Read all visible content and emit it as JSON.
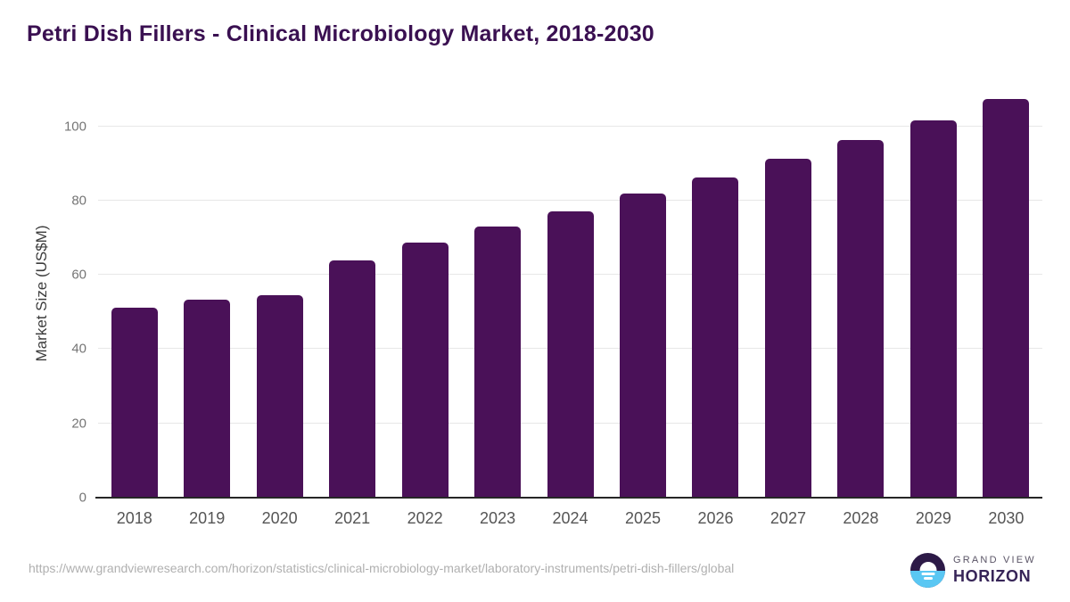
{
  "chart_data": {
    "type": "bar",
    "title": "Petri Dish Fillers - Clinical Microbiology Market, 2018-2030",
    "categories": [
      "2018",
      "2019",
      "2020",
      "2021",
      "2022",
      "2023",
      "2024",
      "2025",
      "2026",
      "2027",
      "2028",
      "2029",
      "2030"
    ],
    "values": [
      51.2,
      53.4,
      54.6,
      63.9,
      68.8,
      72.9,
      77.2,
      81.8,
      86.3,
      91.3,
      96.3,
      101.7,
      107.4
    ],
    "xlabel": "",
    "ylabel": "Market Size (US$M)",
    "ylim": [
      0,
      110
    ],
    "yticks": [
      0,
      20,
      40,
      60,
      80,
      100
    ],
    "grid": "horizontal",
    "legend": "none"
  },
  "colors": {
    "bar": "#4a1158",
    "title": "#3a1051",
    "gridline": "#e7e7e7",
    "axis_line": "#262626",
    "tick_text": "#757575",
    "year_text": "#555555",
    "source_text": "#b0b0b0",
    "logo_dark": "#2d1a47",
    "logo_blue": "#5ac7f3"
  },
  "footer": {
    "source_url": "https://www.grandviewresearch.com/horizon/statistics/clinical-microbiology-market/laboratory-instruments/petri-dish-fillers/global",
    "logo": {
      "brand_top": "GRAND VIEW",
      "brand_bottom": "HORIZON"
    }
  }
}
